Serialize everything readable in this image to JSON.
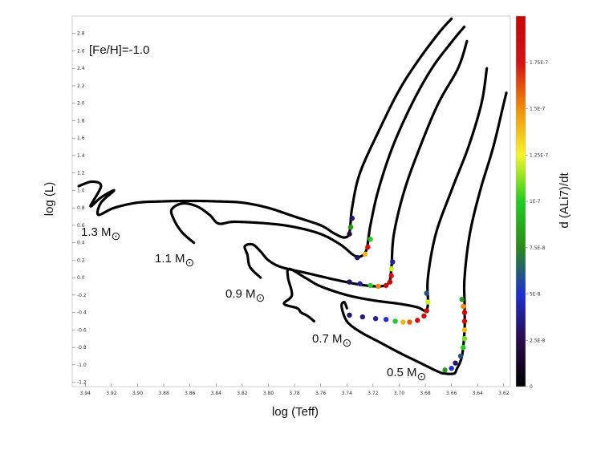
{
  "chart_data": {
    "type": "scatter",
    "xlabel": "log (Teff)",
    "ylabel": "log (L)",
    "annotation": "[Fe/H]=-1.0",
    "xlim": [
      3.95,
      3.615
    ],
    "ylim": [
      -1.25,
      3.0
    ],
    "x_ticks": [
      "3.94",
      "3.92",
      "3.90",
      "3.88",
      "3.86",
      "3.84",
      "3.82",
      "3.80",
      "3.78",
      "3.76",
      "3.74",
      "3.72",
      "3.70",
      "3.68",
      "3.66",
      "3.64",
      "3.62"
    ],
    "y_ticks": [
      "-1.2",
      "-1.0",
      "-0.8",
      "-0.6",
      "-0.4",
      "-0.2",
      "0.0",
      "0.2",
      "0.4",
      "0.6",
      "0.8",
      "1.0",
      "1.2",
      "1.4",
      "1.6",
      "1.8",
      "2.0",
      "2.2",
      "2.4",
      "2.6",
      "2.8"
    ],
    "colorbar": {
      "label": "d (ALi7)/dt",
      "ticks": [
        "0",
        "2.5E-8",
        "5E-8",
        "7.5E-8",
        "1E-7",
        "1.25E-7",
        "1.5E-7",
        "1.75E-7"
      ],
      "tick_values": [
        0,
        0.25,
        0.5,
        0.75,
        1.0,
        1.25,
        1.5,
        1.75
      ],
      "range": [
        0,
        2.0
      ],
      "colors": [
        "#000000",
        "#2b0a4a",
        "#1f2fd0",
        "#2a8a1a",
        "#22cc22",
        "#f5f52a",
        "#f08c0c",
        "#d01414",
        "#c40808"
      ]
    },
    "series": [
      {
        "label": "1.3 M",
        "points": [
          [
            3.945,
            1.05
          ],
          [
            3.935,
            1.1
          ],
          [
            3.928,
            1.05
          ],
          [
            3.936,
            0.82
          ],
          [
            3.928,
            0.92
          ],
          [
            3.918,
            1.0
          ],
          [
            3.928,
            0.86
          ],
          [
            3.93,
            0.72
          ],
          [
            3.918,
            0.8
          ],
          [
            3.9,
            0.86
          ],
          [
            3.88,
            0.875
          ],
          [
            3.86,
            0.88
          ],
          [
            3.84,
            0.875
          ],
          [
            3.82,
            0.86
          ],
          [
            3.8,
            0.8
          ],
          [
            3.78,
            0.7
          ],
          [
            3.76,
            0.6
          ],
          [
            3.75,
            0.51
          ],
          [
            3.742,
            0.46
          ],
          [
            3.738,
            0.52
          ],
          [
            3.736,
            0.8
          ],
          [
            3.73,
            1.2
          ],
          [
            3.715,
            1.7
          ],
          [
            3.7,
            2.15
          ],
          [
            3.685,
            2.5
          ],
          [
            3.67,
            2.8
          ],
          [
            3.66,
            2.97
          ]
        ],
        "heat": [
          [
            3.738,
            0.5,
            0.2
          ],
          [
            3.737,
            0.58,
            0.8
          ],
          [
            3.736,
            0.68,
            0.3
          ]
        ]
      },
      {
        "label": "1.1 M",
        "points": [
          [
            3.857,
            0.4
          ],
          [
            3.866,
            0.52
          ],
          [
            3.872,
            0.66
          ],
          [
            3.874,
            0.78
          ],
          [
            3.866,
            0.85
          ],
          [
            3.855,
            0.82
          ],
          [
            3.845,
            0.72
          ],
          [
            3.838,
            0.62
          ],
          [
            3.826,
            0.64
          ],
          [
            3.8,
            0.62
          ],
          [
            3.78,
            0.58
          ],
          [
            3.76,
            0.5
          ],
          [
            3.745,
            0.38
          ],
          [
            3.735,
            0.26
          ],
          [
            3.73,
            0.24
          ],
          [
            3.725,
            0.32
          ],
          [
            3.722,
            0.6
          ],
          [
            3.716,
            1.0
          ],
          [
            3.705,
            1.5
          ],
          [
            3.69,
            2.0
          ],
          [
            3.675,
            2.4
          ],
          [
            3.66,
            2.7
          ],
          [
            3.65,
            2.88
          ]
        ],
        "heat": [
          [
            3.732,
            0.23,
            0.3
          ],
          [
            3.726,
            0.27,
            1.4
          ],
          [
            3.724,
            0.35,
            1.8
          ],
          [
            3.722,
            0.44,
            1.0
          ]
        ]
      },
      {
        "label": "0.9 M",
        "points": [
          [
            3.806,
            0.0
          ],
          [
            3.814,
            0.12
          ],
          [
            3.816,
            0.26
          ],
          [
            3.818,
            0.36
          ],
          [
            3.812,
            0.38
          ],
          [
            3.806,
            0.3
          ],
          [
            3.8,
            0.2
          ],
          [
            3.79,
            0.12
          ],
          [
            3.77,
            0.05
          ],
          [
            3.75,
            -0.02
          ],
          [
            3.73,
            -0.08
          ],
          [
            3.715,
            -0.1
          ],
          [
            3.708,
            -0.06
          ],
          [
            3.706,
            0.1
          ],
          [
            3.704,
            0.5
          ],
          [
            3.696,
            1.0
          ],
          [
            3.684,
            1.5
          ],
          [
            3.67,
            2.0
          ],
          [
            3.655,
            2.4
          ],
          [
            3.648,
            2.72
          ]
        ],
        "heat": [
          [
            3.738,
            -0.05,
            0.3
          ],
          [
            3.73,
            -0.07,
            0.4
          ],
          [
            3.722,
            -0.09,
            1.0
          ],
          [
            3.716,
            -0.1,
            1.5
          ],
          [
            3.71,
            -0.09,
            1.9
          ],
          [
            3.707,
            -0.05,
            1.9
          ],
          [
            3.706,
            0.02,
            1.8
          ],
          [
            3.706,
            0.1,
            1.2
          ],
          [
            3.705,
            0.18,
            0.4
          ]
        ]
      },
      {
        "label": "0.7 M",
        "points": [
          [
            3.765,
            -0.5
          ],
          [
            3.77,
            -0.44
          ],
          [
            3.775,
            -0.4
          ],
          [
            3.778,
            -0.35
          ],
          [
            3.788,
            -0.3
          ],
          [
            3.782,
            -0.2
          ],
          [
            3.785,
            0.0
          ],
          [
            3.784,
            0.1
          ],
          [
            3.772,
            0.0
          ],
          [
            3.76,
            -0.1
          ],
          [
            3.74,
            -0.2
          ],
          [
            3.72,
            -0.26
          ],
          [
            3.7,
            -0.3
          ],
          [
            3.686,
            -0.34
          ],
          [
            3.68,
            -0.38
          ],
          [
            3.678,
            -0.3
          ],
          [
            3.678,
            0.0
          ],
          [
            3.672,
            0.5
          ],
          [
            3.66,
            1.0
          ],
          [
            3.647,
            1.5
          ],
          [
            3.637,
            2.0
          ],
          [
            3.633,
            2.4
          ]
        ],
        "heat": [
          [
            3.738,
            -0.43,
            0.3
          ],
          [
            3.728,
            -0.45,
            0.35
          ],
          [
            3.718,
            -0.47,
            0.4
          ],
          [
            3.71,
            -0.48,
            0.5
          ],
          [
            3.703,
            -0.5,
            1.0
          ],
          [
            3.697,
            -0.51,
            1.4
          ],
          [
            3.692,
            -0.51,
            1.6
          ],
          [
            3.686,
            -0.49,
            1.9
          ],
          [
            3.681,
            -0.44,
            1.9
          ],
          [
            3.679,
            -0.38,
            1.9
          ],
          [
            3.678,
            -0.28,
            1.2
          ],
          [
            3.679,
            -0.18,
            0.6
          ]
        ]
      },
      {
        "label": "0.5 M",
        "points": [
          [
            3.74,
            -0.35
          ],
          [
            3.742,
            -0.28
          ],
          [
            3.744,
            -0.33
          ],
          [
            3.74,
            -0.5
          ],
          [
            3.73,
            -0.62
          ],
          [
            3.715,
            -0.74
          ],
          [
            3.7,
            -0.86
          ],
          [
            3.685,
            -0.97
          ],
          [
            3.67,
            -1.08
          ],
          [
            3.665,
            -1.1
          ],
          [
            3.658,
            -1.1
          ],
          [
            3.656,
            -1.05
          ],
          [
            3.652,
            -0.9
          ],
          [
            3.65,
            -0.6
          ],
          [
            3.65,
            -0.3
          ],
          [
            3.65,
            0.0
          ],
          [
            3.646,
            0.5
          ],
          [
            3.638,
            1.0
          ],
          [
            3.628,
            1.5
          ],
          [
            3.62,
            2.0
          ],
          [
            3.618,
            2.12
          ]
        ],
        "heat": [
          [
            3.665,
            -1.06,
            0.8
          ],
          [
            3.66,
            -1.04,
            0.5
          ],
          [
            3.657,
            -0.98,
            0.3
          ],
          [
            3.653,
            -0.9,
            0.6
          ],
          [
            3.651,
            -0.8,
            1.0
          ],
          [
            3.65,
            -0.7,
            1.1
          ],
          [
            3.65,
            -0.6,
            1.4
          ],
          [
            3.65,
            -0.5,
            1.9
          ],
          [
            3.65,
            -0.4,
            1.9
          ],
          [
            3.651,
            -0.33,
            1.5
          ],
          [
            3.652,
            -0.25,
            0.8
          ]
        ]
      }
    ],
    "mass_labels": [
      "1.3 M",
      "1.1 M",
      "0.9 M",
      "0.7 M",
      "0.5 M"
    ],
    "sun_symbol": "⊙"
  }
}
